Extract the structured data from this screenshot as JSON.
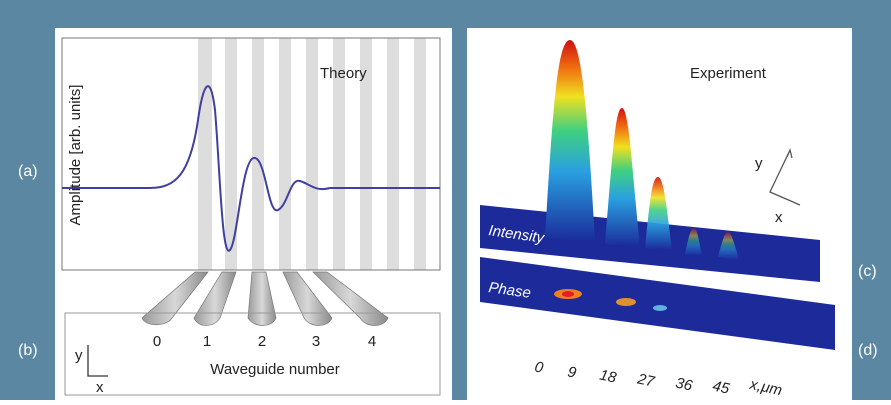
{
  "panel_labels": [
    "(a)",
    "(b)",
    "(c)",
    "(d)"
  ],
  "theory": {
    "title": "Theory",
    "y_label": "Amplitude [arb. units]",
    "x_label": "Waveguide number",
    "waveguides": [
      0,
      1,
      2,
      3,
      4
    ],
    "axis_y": "y",
    "axis_x": "x"
  },
  "experiment": {
    "title": "Experiment",
    "intensity": "Intensity",
    "phase": "Phase",
    "axis_y": "y",
    "axis_x": "x",
    "x_ticks": [
      "0",
      "9",
      "18",
      "27",
      "36",
      "45",
      "x,μm"
    ]
  }
}
